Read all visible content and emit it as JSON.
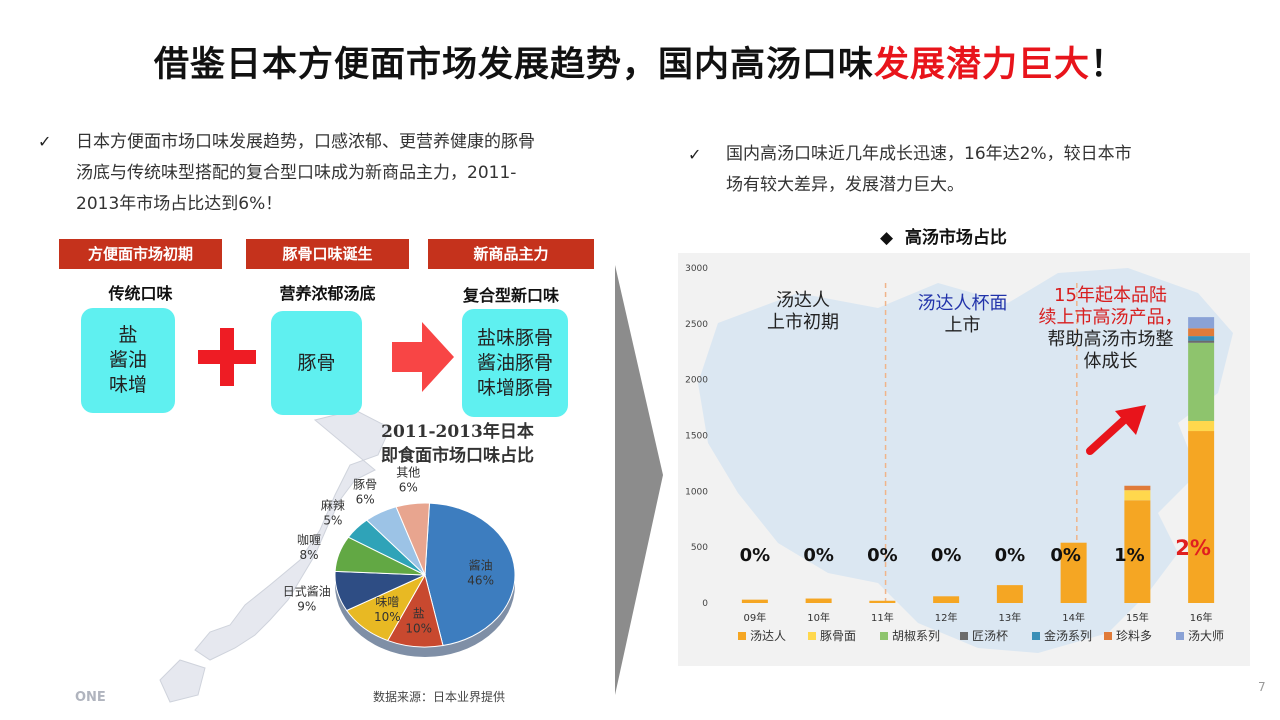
{
  "slide": {
    "title_main": "借鉴日本方便面市场发展趋势，国内高汤口味",
    "title_highlight": "发展潜力巨大",
    "title_end": "！",
    "page_number": "7"
  },
  "left_bullet": {
    "check": "✓",
    "line1": "日本方便面市场口味发展趋势，口感浓郁、更营养健康的豚骨",
    "line2": "汤底与传统味型搭配的复合型口味成为新商品主力，2011-",
    "line3": "2013年市场占比达到6%！"
  },
  "right_bullet": {
    "check": "✓",
    "line1": "国内高汤口味近几年成长迅速，16年达2%，较日本市",
    "line2": "场有较大差异，发展潜力巨大。"
  },
  "stages": [
    {
      "label": "方便面市场初期",
      "sub": "传统口味",
      "items": [
        "盐",
        "酱油",
        "味增"
      ]
    },
    {
      "label": "豚骨口味诞生",
      "sub": "营养浓郁汤底",
      "items": [
        "豚骨"
      ]
    },
    {
      "label": "新商品主力",
      "sub": "复合型新口味",
      "items": [
        "盐味豚骨",
        "酱油豚骨",
        "味增豚骨"
      ]
    }
  ],
  "plus_symbol": "+",
  "pie": {
    "title_line1": "2011-2013年日本",
    "title_line2": "即食面市场口味占比",
    "source": "数据来源：日本业界提供",
    "logo_text": "ONE",
    "colors": {
      "soy": "#3d7dbf",
      "salt": "#c8492f",
      "miso": "#e8b923",
      "japanese_soy": "#2e4d84",
      "curry": "#62a844",
      "spicy": "#2fa3b8",
      "tonkotsu": "#9cc3e6",
      "other": "#e8a58f"
    }
  },
  "chart_data": [
    {
      "type": "pie",
      "title": "2011-2013年日本即食面市场口味占比",
      "slices": [
        {
          "label": "酱油",
          "value": 46
        },
        {
          "label": "盐",
          "value": 10
        },
        {
          "label": "味噌",
          "value": 10
        },
        {
          "label": "日式酱油",
          "value": 9
        },
        {
          "label": "咖喱",
          "value": 8
        },
        {
          "label": "麻辣",
          "value": 5
        },
        {
          "label": "豚骨",
          "value": 6
        },
        {
          "label": "其他",
          "value": 6
        }
      ]
    },
    {
      "type": "bar",
      "stacked": true,
      "title": "高汤市场占比",
      "title_prefix": "◆",
      "categories": [
        "09年",
        "10年",
        "11年",
        "12年",
        "13年",
        "14年",
        "15年",
        "16年"
      ],
      "y_ticks": [
        "0",
        "500",
        "1000",
        "1500",
        "2000",
        "2500",
        "3000"
      ],
      "ylim": [
        0,
        3000
      ],
      "series": [
        {
          "name": "汤达人",
          "color": "#f5a623",
          "values": [
            30,
            40,
            20,
            60,
            160,
            540,
            920,
            1540
          ]
        },
        {
          "name": "豚骨面",
          "color": "#ffd84d",
          "values": [
            0,
            0,
            0,
            0,
            0,
            0,
            90,
            90
          ]
        },
        {
          "name": "胡椒系列",
          "color": "#8ec46d",
          "values": [
            0,
            0,
            0,
            0,
            0,
            0,
            0,
            700
          ]
        },
        {
          "name": "匠汤杯",
          "color": "#6b6b6b",
          "values": [
            0,
            0,
            0,
            0,
            0,
            0,
            0,
            20
          ]
        },
        {
          "name": "金汤系列",
          "color": "#3a8fb7",
          "values": [
            0,
            0,
            0,
            0,
            0,
            0,
            0,
            40
          ]
        },
        {
          "name": "珍料多",
          "color": "#e07b39",
          "values": [
            0,
            0,
            0,
            0,
            0,
            0,
            40,
            70
          ]
        },
        {
          "name": "汤大师",
          "color": "#8aa2d6",
          "values": [
            0,
            0,
            0,
            0,
            0,
            0,
            0,
            100
          ]
        }
      ],
      "percent_labels": [
        "0%",
        "0%",
        "0%",
        "0%",
        "0%",
        "0%",
        "1%",
        "2%"
      ],
      "annotations": [
        {
          "line1": "汤达人",
          "line2": "上市初期",
          "color": "#222222"
        },
        {
          "line1": "汤达人杯面",
          "line2": "上市",
          "color1": "#2233aa",
          "color2": "#222222"
        },
        {
          "line1": "15年起本品陆",
          "line2": "续上市高汤产品，",
          "line3": "帮助高汤市场整",
          "line4": "体成长",
          "color": "#d81e1e"
        }
      ]
    }
  ]
}
